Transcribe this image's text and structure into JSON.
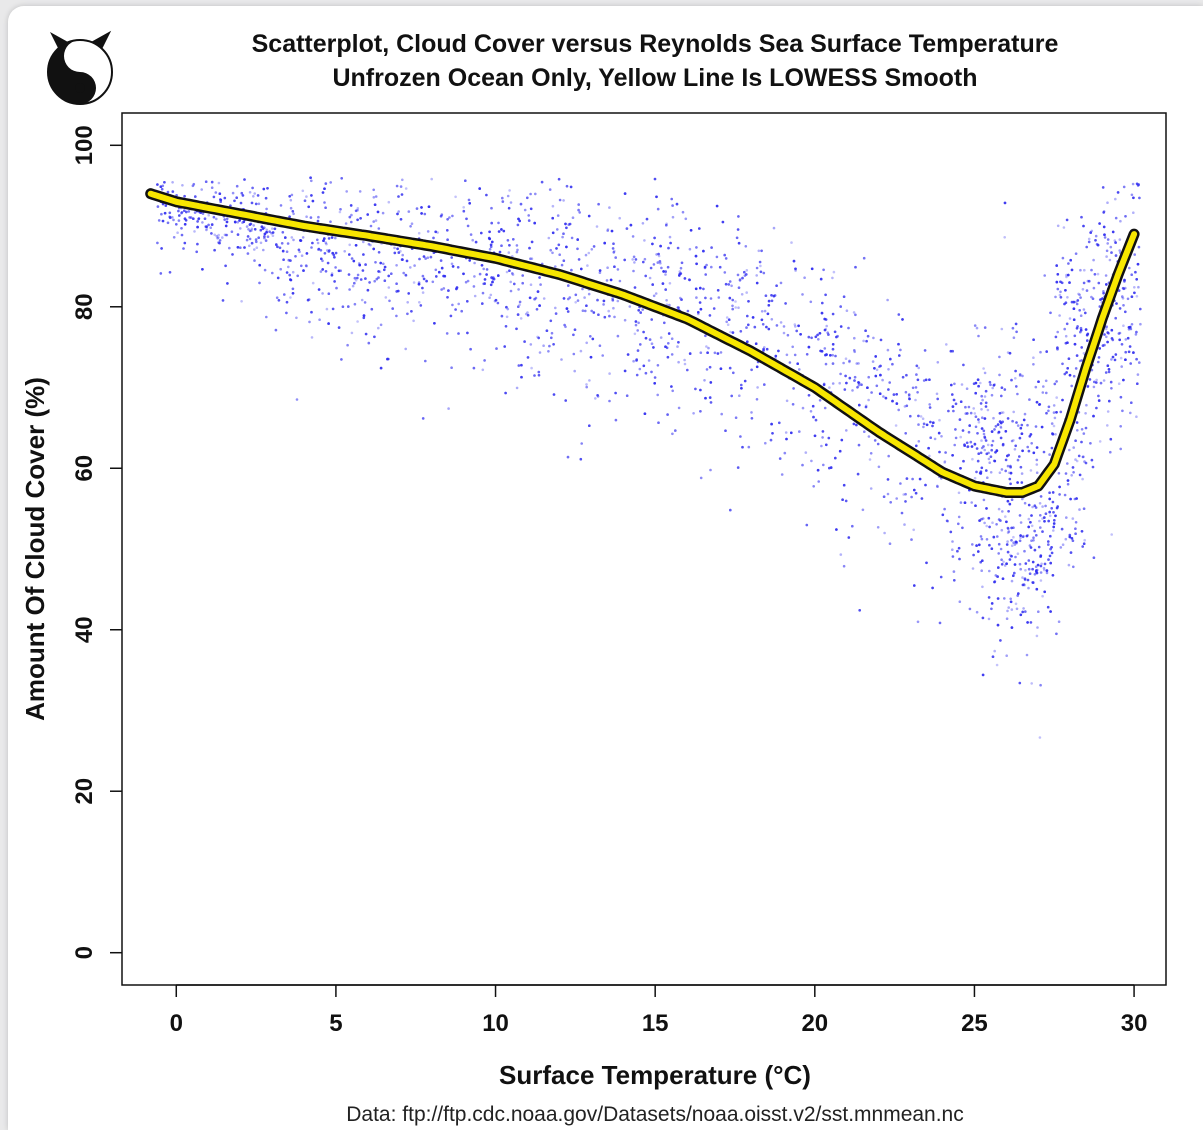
{
  "chart_data": {
    "type": "scatter",
    "title": "Scatterplot, Cloud Cover versus Reynolds Sea Surface Temperature",
    "subtitle": "Unfrozen Ocean Only, Yellow Line Is LOWESS Smooth",
    "xlabel": "Surface Temperature (°C)",
    "ylabel": "Amount Of Cloud Cover (%)",
    "xlim": [
      -1.7,
      31
    ],
    "ylim": [
      -4,
      104
    ],
    "x_ticks": [
      0,
      5,
      10,
      15,
      20,
      25,
      30
    ],
    "y_ticks": [
      0,
      20,
      40,
      60,
      80,
      100
    ],
    "grid": false,
    "source_note": "Data: ftp://ftp.cdc.noaa.gov/Datasets/noaa.oisst.v2/sst.mnmean.nc",
    "colors": {
      "points": "#2f2cf0",
      "smooth": "#f7e600",
      "smooth_outline": "#111111"
    },
    "logo_icon": "yin-yang-cat-icon",
    "lowess": {
      "name": "LOWESS Smooth",
      "x": [
        -0.8,
        0,
        2,
        4,
        6,
        8,
        10,
        12,
        14,
        16,
        18,
        20,
        22,
        24,
        25,
        26,
        26.5,
        27,
        27.5,
        28,
        28.5,
        29,
        29.5,
        30
      ],
      "y": [
        94,
        93,
        91.5,
        90,
        88.8,
        87.5,
        86,
        84,
        81.5,
        78.5,
        74.5,
        70,
        64.5,
        59.5,
        57.8,
        57,
        57,
        57.8,
        60.5,
        66,
        72.5,
        78.5,
        84,
        89
      ]
    },
    "scatter_density": [
      {
        "x_range": [
          -0.5,
          5
        ],
        "y_center": [
          93,
          89
        ],
        "spread": 3,
        "density": "high"
      },
      {
        "x_range": [
          5,
          15
        ],
        "y_center": [
          89,
          80
        ],
        "spread": 6,
        "density": "medium"
      },
      {
        "x_range": [
          15,
          25
        ],
        "y_center": [
          80,
          62
        ],
        "spread": 9,
        "density": "medium"
      },
      {
        "x_range": [
          25,
          28
        ],
        "y_center": [
          57,
          45
        ],
        "spread": 12,
        "density": "high"
      },
      {
        "x_range": [
          28,
          30
        ],
        "y_center": [
          60,
          86
        ],
        "spread": 12,
        "density": "high"
      }
    ]
  }
}
